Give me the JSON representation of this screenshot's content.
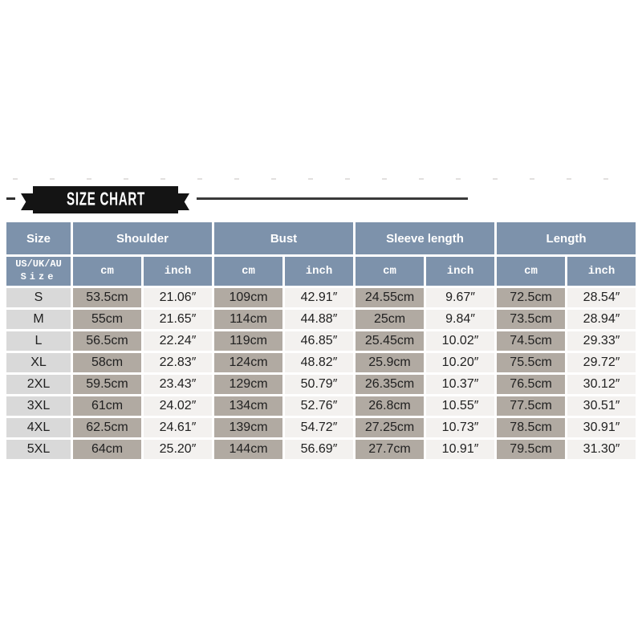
{
  "banner": {
    "title": "SIZE CHART"
  },
  "colors": {
    "header_blue": "#7d92ab",
    "size_column_bg": "#d9d9d9",
    "cm_column_bg": "#b1aaa2",
    "inch_column_bg": "#f3f1ef",
    "ribbon_black": "#141414",
    "text_dark": "#212121"
  },
  "chart_data": {
    "type": "table",
    "title": "SIZE CHART",
    "column_groups": [
      "Size",
      "Shoulder",
      "Bust",
      "Sleeve length",
      "Length"
    ],
    "size_header": {
      "line1": "US/UK/AU",
      "line2": "Size"
    },
    "units": [
      "cm",
      "inch"
    ],
    "rows": [
      [
        "S",
        "53.5cm",
        "21.06″",
        "109cm",
        "42.91″",
        "24.55cm",
        "9.67″",
        "72.5cm",
        "28.54″"
      ],
      [
        "M",
        "55cm",
        "21.65″",
        "114cm",
        "44.88″",
        "25cm",
        "9.84″",
        "73.5cm",
        "28.94″"
      ],
      [
        "L",
        "56.5cm",
        "22.24″",
        "119cm",
        "46.85″",
        "25.45cm",
        "10.02″",
        "74.5cm",
        "29.33″"
      ],
      [
        "XL",
        "58cm",
        "22.83″",
        "124cm",
        "48.82″",
        "25.9cm",
        "10.20″",
        "75.5cm",
        "29.72″"
      ],
      [
        "2XL",
        "59.5cm",
        "23.43″",
        "129cm",
        "50.79″",
        "26.35cm",
        "10.37″",
        "76.5cm",
        "30.12″"
      ],
      [
        "3XL",
        "61cm",
        "24.02″",
        "134cm",
        "52.76″",
        "26.8cm",
        "10.55″",
        "77.5cm",
        "30.51″"
      ],
      [
        "4XL",
        "62.5cm",
        "24.61″",
        "139cm",
        "54.72″",
        "27.25cm",
        "10.73″",
        "78.5cm",
        "30.91″"
      ],
      [
        "5XL",
        "64cm",
        "25.20″",
        "144cm",
        "56.69″",
        "27.7cm",
        "10.91″",
        "79.5cm",
        "31.30″"
      ]
    ]
  }
}
